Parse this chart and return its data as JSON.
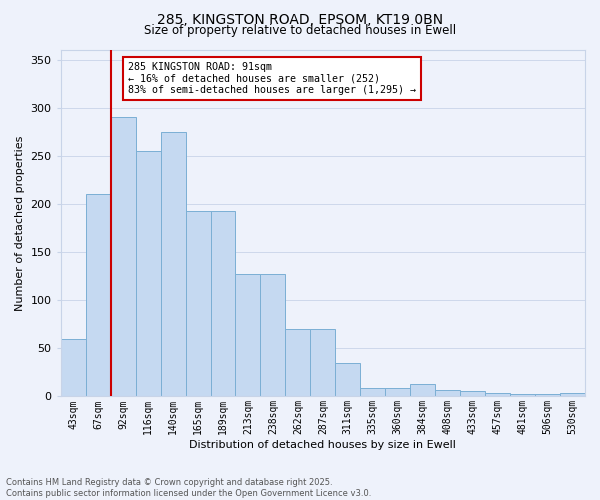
{
  "title_line1": "285, KINGSTON ROAD, EPSOM, KT19 0BN",
  "title_line2": "Size of property relative to detached houses in Ewell",
  "xlabel": "Distribution of detached houses by size in Ewell",
  "ylabel": "Number of detached properties",
  "bar_labels": [
    "43sqm",
    "67sqm",
    "92sqm",
    "116sqm",
    "140sqm",
    "165sqm",
    "189sqm",
    "213sqm",
    "238sqm",
    "262sqm",
    "287sqm",
    "311sqm",
    "335sqm",
    "360sqm",
    "384sqm",
    "408sqm",
    "433sqm",
    "457sqm",
    "481sqm",
    "506sqm",
    "530sqm"
  ],
  "bar_values": [
    60,
    210,
    290,
    255,
    275,
    193,
    193,
    127,
    127,
    70,
    70,
    35,
    9,
    9,
    13,
    7,
    6,
    4,
    2,
    3,
    4
  ],
  "bar_color": "#c5d9f1",
  "bar_edgecolor": "#7bafd4",
  "vline_x_index": 2,
  "vline_color": "#cc0000",
  "annotation_text": "285 KINGSTON ROAD: 91sqm\n← 16% of detached houses are smaller (252)\n83% of semi-detached houses are larger (1,295) →",
  "annotation_box_edgecolor": "#cc0000",
  "annotation_box_facecolor": "white",
  "ylim": [
    0,
    360
  ],
  "yticks": [
    0,
    50,
    100,
    150,
    200,
    250,
    300,
    350
  ],
  "footer_line1": "Contains HM Land Registry data © Crown copyright and database right 2025.",
  "footer_line2": "Contains public sector information licensed under the Open Government Licence v3.0.",
  "bg_color": "#eef2fb",
  "grid_color": "#c8d4e8",
  "fig_width": 6.0,
  "fig_height": 5.0,
  "dpi": 100
}
